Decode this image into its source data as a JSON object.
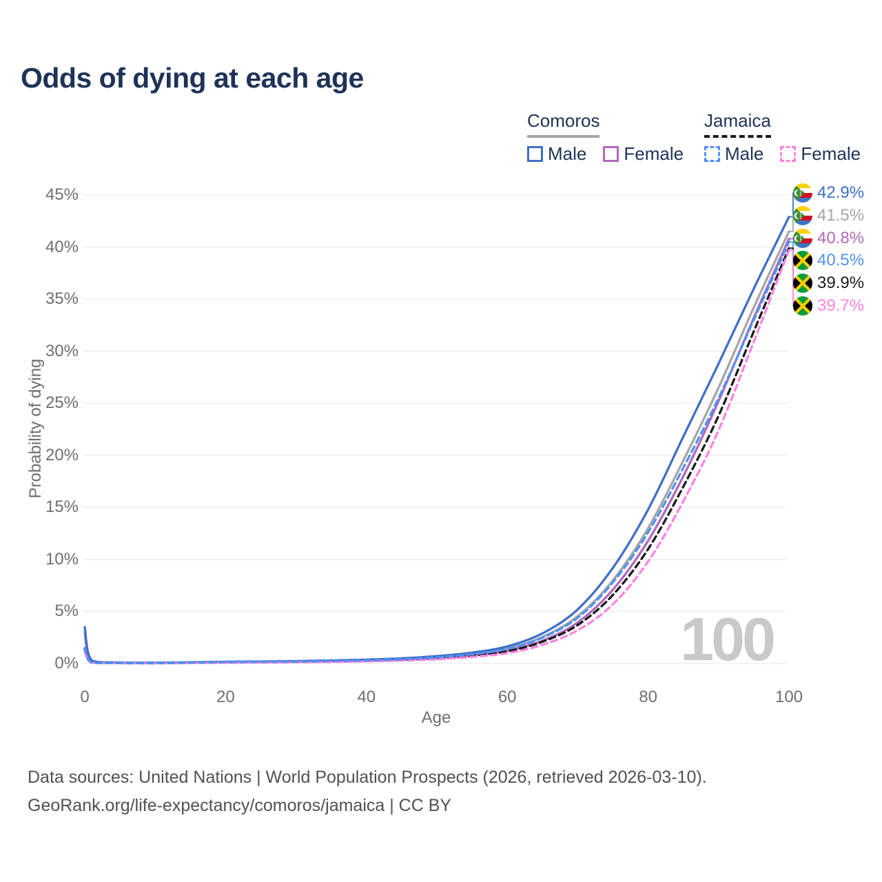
{
  "title": "Odds of dying at each age",
  "legend": {
    "comoros": {
      "label": "Comoros",
      "male_label": "Male",
      "female_label": "Female"
    },
    "jamaica": {
      "label": "Jamaica",
      "male_label": "Male",
      "female_label": "Female"
    }
  },
  "axes": {
    "x": {
      "title": "Age",
      "ticks": [
        0,
        20,
        40,
        60,
        80,
        100
      ]
    },
    "y": {
      "title": "Probability of dying",
      "ticks": [
        "0%",
        "5%",
        "10%",
        "15%",
        "20%",
        "25%",
        "30%",
        "35%",
        "40%",
        "45%"
      ]
    }
  },
  "watermark": "100",
  "end_labels": [
    {
      "flag": "comoros",
      "value": "42.9%",
      "color": "#3f6fc7"
    },
    {
      "flag": "comoros",
      "value": "41.5%",
      "color": "#a5a5a5"
    },
    {
      "flag": "comoros",
      "value": "40.8%",
      "color": "#b168bc"
    },
    {
      "flag": "jamaica",
      "value": "40.5%",
      "color": "#4e92f6"
    },
    {
      "flag": "jamaica",
      "value": "39.9%",
      "color": "#1a1a1a"
    },
    {
      "flag": "jamaica",
      "value": "39.7%",
      "color": "#ff82e2"
    }
  ],
  "footer": {
    "line1": "Data sources: United Nations | World Population Prospects (2026, retrieved 2026-03-10).",
    "line2": "GeoRank.org/life-expectancy/comoros/jamaica | CC BY"
  },
  "chart_data": {
    "type": "line",
    "title": "Odds of dying at each age",
    "xlabel": "Age",
    "ylabel": "Probability of dying",
    "xlim": [
      0,
      100
    ],
    "ylim_pct": [
      0,
      45
    ],
    "grid": "horizontal",
    "legend_position": "top-right",
    "x": [
      0,
      1,
      5,
      10,
      15,
      20,
      25,
      30,
      35,
      40,
      45,
      50,
      55,
      60,
      65,
      70,
      75,
      80,
      85,
      90,
      95,
      100
    ],
    "series": [
      {
        "name": "Comoros Both",
        "country": "Comoros",
        "style": "solid",
        "color": "#a5a5a5",
        "end_label": "41.5%",
        "values_pct": [
          3.2,
          0.27,
          0.09,
          0.07,
          0.1,
          0.14,
          0.17,
          0.2,
          0.25,
          0.32,
          0.43,
          0.62,
          0.92,
          1.45,
          2.55,
          4.55,
          8.0,
          13.0,
          19.5,
          26.5,
          34.2,
          41.5
        ]
      },
      {
        "name": "Comoros Female",
        "country": "Comoros",
        "style": "solid",
        "color": "#b168bc",
        "end_label": "40.8%",
        "values_pct": [
          2.9,
          0.25,
          0.08,
          0.06,
          0.08,
          0.11,
          0.14,
          0.17,
          0.21,
          0.27,
          0.37,
          0.53,
          0.8,
          1.25,
          2.2,
          3.95,
          7.1,
          11.8,
          18.0,
          25.2,
          33.2,
          40.8
        ]
      },
      {
        "name": "Comoros Male",
        "country": "Comoros",
        "style": "solid",
        "color": "#3f6fc7",
        "end_label": "42.9%",
        "values_pct": [
          3.5,
          0.3,
          0.1,
          0.08,
          0.12,
          0.17,
          0.2,
          0.24,
          0.3,
          0.38,
          0.5,
          0.72,
          1.05,
          1.65,
          2.9,
          5.2,
          9.2,
          14.8,
          21.8,
          28.8,
          36.0,
          42.9
        ]
      },
      {
        "name": "Jamaica Both",
        "country": "Jamaica",
        "style": "dashed",
        "color": "#1a1a1a",
        "end_label": "39.9%",
        "values_pct": [
          1.35,
          0.09,
          0.04,
          0.035,
          0.07,
          0.11,
          0.14,
          0.16,
          0.2,
          0.26,
          0.35,
          0.5,
          0.76,
          1.18,
          2.1,
          3.7,
          6.6,
          11.0,
          17.0,
          23.8,
          31.9,
          39.9
        ]
      },
      {
        "name": "Jamaica Female",
        "country": "Jamaica",
        "style": "dashed",
        "color": "#ff82e2",
        "end_label": "39.7%",
        "values_pct": [
          1.2,
          0.08,
          0.04,
          0.03,
          0.05,
          0.08,
          0.1,
          0.13,
          0.16,
          0.21,
          0.29,
          0.42,
          0.64,
          1.0,
          1.8,
          3.2,
          5.7,
          9.8,
          15.6,
          22.4,
          30.9,
          39.7
        ]
      },
      {
        "name": "Jamaica Male",
        "country": "Jamaica",
        "style": "dashed",
        "color": "#4e92f6",
        "end_label": "40.5%",
        "values_pct": [
          1.5,
          0.1,
          0.05,
          0.04,
          0.09,
          0.14,
          0.17,
          0.2,
          0.25,
          0.31,
          0.42,
          0.6,
          0.9,
          1.4,
          2.5,
          4.4,
          7.8,
          12.6,
          18.8,
          25.5,
          33.0,
          40.5
        ]
      }
    ]
  }
}
